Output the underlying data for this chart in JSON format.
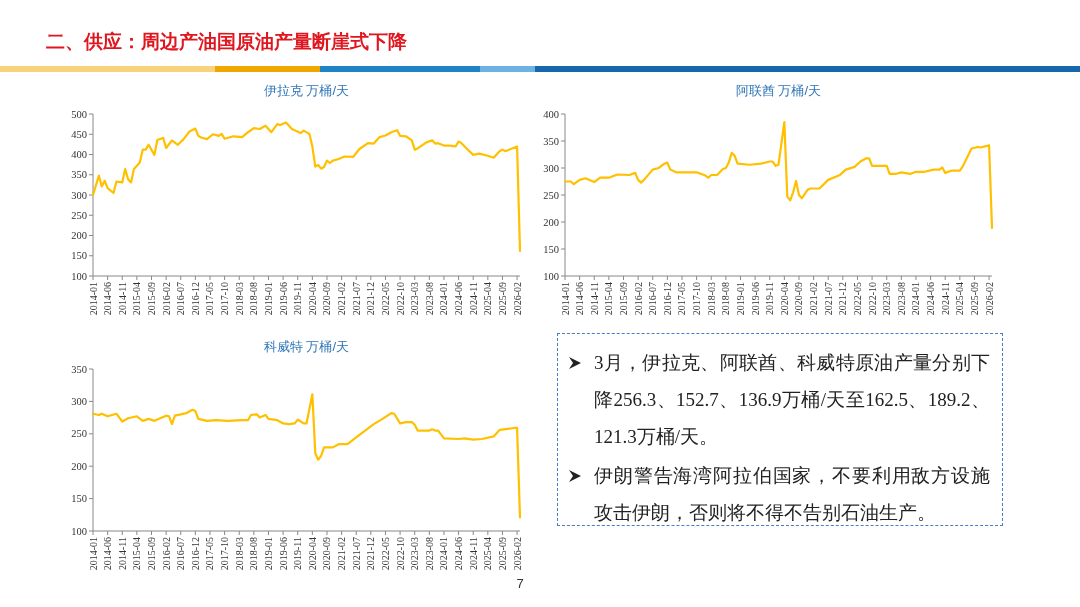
{
  "chart_data": [
    {
      "type": "line",
      "title": "伊拉克 万桶/天",
      "color": "#ffc000",
      "xlim": [
        "2014-01",
        "2026-03"
      ],
      "ylim": [
        100,
        500
      ],
      "yticks": [
        100,
        150,
        200,
        250,
        300,
        350,
        400,
        450,
        500
      ],
      "xticks": [
        "2014-01",
        "2014-06",
        "2014-11",
        "2015-04",
        "2015-09",
        "2016-02",
        "2016-07",
        "2016-12",
        "2017-05",
        "2017-10",
        "2018-03",
        "2018-08",
        "2019-01",
        "2019-06",
        "2019-11",
        "2020-04",
        "2020-09",
        "2021-02",
        "2021-07",
        "2021-12",
        "2022-05",
        "2022-10",
        "2023-03",
        "2023-08",
        "2024-01",
        "2024-06",
        "2024-11",
        "2025-04",
        "2025-09",
        "2026-02"
      ],
      "x": [
        "2014-01",
        "2014-03",
        "2014-04",
        "2014-05",
        "2014-06",
        "2014-08",
        "2014-09",
        "2014-11",
        "2014-12",
        "2015-01",
        "2015-02",
        "2015-03",
        "2015-05",
        "2015-06",
        "2015-07",
        "2015-08",
        "2015-10",
        "2015-11",
        "2016-01",
        "2016-02",
        "2016-04",
        "2016-06",
        "2016-08",
        "2016-10",
        "2016-12",
        "2017-01",
        "2017-02",
        "2017-04",
        "2017-06",
        "2017-08",
        "2017-09",
        "2017-10",
        "2018-01",
        "2018-04",
        "2018-06",
        "2018-08",
        "2018-10",
        "2018-12",
        "2019-02",
        "2019-04",
        "2019-05",
        "2019-07",
        "2019-09",
        "2019-12",
        "2020-01",
        "2020-03",
        "2020-04",
        "2020-05",
        "2020-06",
        "2020-07",
        "2020-08",
        "2020-09",
        "2020-10",
        "2020-11",
        "2021-01",
        "2021-03",
        "2021-06",
        "2021-08",
        "2021-11",
        "2022-01",
        "2022-03",
        "2022-05",
        "2022-07",
        "2022-09",
        "2022-10",
        "2022-12",
        "2023-02",
        "2023-03",
        "2023-04",
        "2023-07",
        "2023-09",
        "2023-10",
        "2023-11",
        "2024-01",
        "2024-03",
        "2024-05",
        "2024-06",
        "2024-07",
        "2024-09",
        "2024-11",
        "2025-01",
        "2025-04",
        "2025-06",
        "2025-08",
        "2025-09",
        "2025-10",
        "2026-02",
        "2026-03"
      ],
      "values": [
        300,
        348,
        321,
        335,
        317,
        305,
        333,
        331,
        364,
        339,
        331,
        364,
        380,
        412,
        412,
        424,
        399,
        436,
        441,
        416,
        435,
        424,
        438,
        457,
        464,
        446,
        442,
        438,
        450,
        446,
        451,
        439,
        445,
        443,
        455,
        465,
        463,
        471,
        455,
        475,
        473,
        479,
        463,
        453,
        459,
        451,
        420,
        370,
        374,
        365,
        369,
        385,
        379,
        385,
        389,
        395,
        394,
        413,
        428,
        427,
        443,
        447,
        455,
        460,
        446,
        445,
        435,
        412,
        415,
        430,
        435,
        427,
        428,
        422,
        422,
        420,
        432,
        428,
        413,
        399,
        402,
        397,
        392,
        408,
        412,
        408,
        420,
        162
      ]
    },
    {
      "type": "line",
      "title": "阿联酋 万桶/天",
      "color": "#ffc000",
      "xlim": [
        "2014-01",
        "2026-03"
      ],
      "ylim": [
        100,
        400
      ],
      "yticks": [
        100,
        150,
        200,
        250,
        300,
        350,
        400
      ],
      "xticks": [
        "2014-01",
        "2014-06",
        "2014-11",
        "2015-04",
        "2015-09",
        "2016-02",
        "2016-07",
        "2016-12",
        "2017-05",
        "2017-10",
        "2018-03",
        "2018-08",
        "2019-01",
        "2019-06",
        "2019-11",
        "2020-04",
        "2020-09",
        "2021-02",
        "2021-07",
        "2021-12",
        "2022-05",
        "2022-10",
        "2023-03",
        "2023-08",
        "2024-01",
        "2024-06",
        "2024-11",
        "2025-04",
        "2025-09",
        "2026-02"
      ],
      "x": [
        "2014-01",
        "2014-03",
        "2014-04",
        "2014-06",
        "2014-08",
        "2014-11",
        "2015-01",
        "2015-04",
        "2015-06",
        "2015-07",
        "2015-11",
        "2016-01",
        "2016-02",
        "2016-03",
        "2016-04",
        "2016-07",
        "2016-09",
        "2016-11",
        "2016-12",
        "2017-01",
        "2017-03",
        "2017-07",
        "2017-10",
        "2018-01",
        "2018-02",
        "2018-03",
        "2018-05",
        "2018-07",
        "2018-08",
        "2018-09",
        "2018-10",
        "2018-11",
        "2018-12",
        "2019-04",
        "2019-08",
        "2019-11",
        "2019-12",
        "2020-01",
        "2020-02",
        "2020-04",
        "2020-05",
        "2020-06",
        "2020-07",
        "2020-08",
        "2020-09",
        "2020-10",
        "2020-12",
        "2021-01",
        "2021-04",
        "2021-07",
        "2021-11",
        "2022-01",
        "2022-04",
        "2022-06",
        "2022-08",
        "2022-09",
        "2022-10",
        "2023-03",
        "2023-04",
        "2023-06",
        "2023-08",
        "2023-11",
        "2024-01",
        "2024-04",
        "2024-07",
        "2024-09",
        "2024-10",
        "2024-11",
        "2025-01",
        "2025-04",
        "2025-05",
        "2025-08",
        "2025-10",
        "2025-11",
        "2026-02",
        "2026-03"
      ],
      "values": [
        275,
        275,
        270,
        278,
        281,
        274,
        282,
        282,
        286,
        288,
        287,
        291,
        278,
        273,
        278,
        297,
        300,
        308,
        310,
        297,
        292,
        292,
        292,
        286,
        282,
        287,
        287,
        298,
        300,
        310,
        328,
        323,
        308,
        306,
        308,
        312,
        312,
        304,
        306,
        385,
        247,
        240,
        255,
        276,
        250,
        244,
        260,
        262,
        262,
        278,
        287,
        297,
        302,
        312,
        318,
        318,
        304,
        304,
        289,
        289,
        292,
        289,
        293,
        293,
        297,
        297,
        301,
        291,
        295,
        295,
        303,
        336,
        339,
        338,
        342,
        189
      ]
    },
    {
      "type": "line",
      "title": "科威特 万桶/天",
      "color": "#ffc000",
      "xlim": [
        "2014-01",
        "2026-03"
      ],
      "ylim": [
        100,
        350
      ],
      "yticks": [
        100,
        150,
        200,
        250,
        300,
        350
      ],
      "xticks": [
        "2014-01",
        "2014-06",
        "2014-11",
        "2015-04",
        "2015-09",
        "2016-02",
        "2016-07",
        "2016-12",
        "2017-05",
        "2017-10",
        "2018-03",
        "2018-08",
        "2019-01",
        "2019-06",
        "2019-11",
        "2020-04",
        "2020-09",
        "2021-02",
        "2021-07",
        "2021-12",
        "2022-05",
        "2022-10",
        "2023-03",
        "2023-08",
        "2024-01",
        "2024-06",
        "2024-11",
        "2025-04",
        "2025-09",
        "2026-02"
      ],
      "x": [
        "2014-01",
        "2014-03",
        "2014-04",
        "2014-06",
        "2014-09",
        "2014-11",
        "2015-01",
        "2015-04",
        "2015-06",
        "2015-08",
        "2015-10",
        "2015-12",
        "2016-02",
        "2016-03",
        "2016-04",
        "2016-05",
        "2016-09",
        "2016-11",
        "2016-12",
        "2017-01",
        "2017-04",
        "2017-07",
        "2017-11",
        "2018-04",
        "2018-06",
        "2018-07",
        "2018-09",
        "2018-10",
        "2018-12",
        "2019-01",
        "2019-04",
        "2019-06",
        "2019-08",
        "2019-10",
        "2019-11",
        "2020-01",
        "2020-02",
        "2020-04",
        "2020-05",
        "2020-06",
        "2020-07",
        "2020-08",
        "2020-11",
        "2021-01",
        "2021-04",
        "2021-08",
        "2022-01",
        "2022-04",
        "2022-07",
        "2022-08",
        "2022-10",
        "2022-12",
        "2023-02",
        "2023-03",
        "2023-04",
        "2023-08",
        "2023-09",
        "2023-10",
        "2023-11",
        "2024-01",
        "2024-06",
        "2024-08",
        "2024-11",
        "2025-02",
        "2025-06",
        "2025-08",
        "2026-01",
        "2026-02",
        "2026-03"
      ],
      "values": [
        281,
        279,
        281,
        277,
        281,
        269,
        274,
        277,
        270,
        273,
        270,
        274,
        278,
        277,
        265,
        278,
        282,
        287,
        285,
        273,
        270,
        271,
        270,
        271,
        271,
        279,
        280,
        275,
        279,
        273,
        271,
        266,
        265,
        266,
        272,
        266,
        266,
        311,
        220,
        210,
        216,
        229,
        229,
        234,
        234,
        248,
        265,
        273,
        282,
        281,
        266,
        268,
        268,
        264,
        255,
        255,
        257,
        255,
        255,
        243,
        242,
        243,
        241,
        242,
        246,
        256,
        259,
        259,
        121
      ]
    },
    {
      "type": "other",
      "title": "二、供应：周边产油国原油产量断崖式下降",
      "annotations": [
        "3月，伊拉克、阿联酋、科威特原油产量分别下降256.3、152.7、136.9万桶/天至162.5、189.2、121.3万桶/天。",
        "伊朗警告海湾阿拉伯国家，不要利用敌方设施攻击伊朗，否则将不得不告别石油生产。",
        "7"
      ]
    }
  ]
}
